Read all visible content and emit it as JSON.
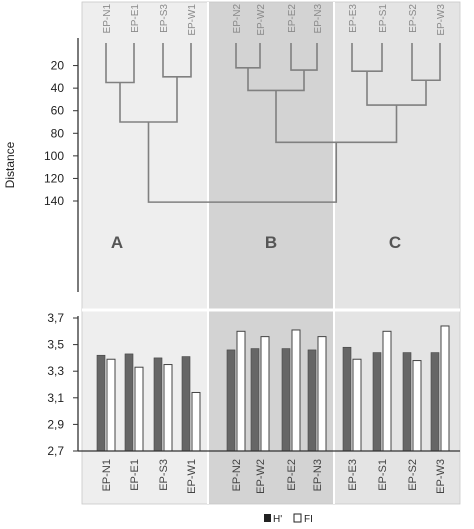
{
  "chart_data": [
    {
      "type": "dendrogram",
      "ylabel": "Distance",
      "yticks": [
        20,
        40,
        60,
        80,
        100,
        120,
        140
      ],
      "ylim": [
        0,
        150
      ],
      "leaves": [
        "EP-N1",
        "EP-E1",
        "EP-S3",
        "EP-W1",
        "EP-N2",
        "EP-W2",
        "EP-E2",
        "EP-N3",
        "EP-E3",
        "EP-S1",
        "EP-S2",
        "EP-W3"
      ],
      "merges": [
        {
          "left": "EP-N1",
          "right": "EP-E1",
          "height": 35
        },
        {
          "left": "EP-S3",
          "right": "EP-W1",
          "height": 30
        },
        {
          "left": "A1",
          "right": "A2",
          "height": 70
        },
        {
          "left": "EP-N2",
          "right": "EP-W2",
          "height": 22
        },
        {
          "left": "EP-E2",
          "right": "EP-N3",
          "height": 24
        },
        {
          "left": "B1",
          "right": "B2",
          "height": 42
        },
        {
          "left": "EP-E3",
          "right": "EP-S1",
          "height": 25
        },
        {
          "left": "EP-S2",
          "right": "EP-W3",
          "height": 33
        },
        {
          "left": "C1",
          "right": "C2",
          "height": 55
        },
        {
          "left": "B",
          "right": "C",
          "height": 88
        },
        {
          "left": "A",
          "right": "BC",
          "height": 141
        }
      ],
      "groups": [
        {
          "label": "A",
          "members": [
            "EP-N1",
            "EP-E1",
            "EP-S3",
            "EP-W1"
          ],
          "color": "#eeeeee"
        },
        {
          "label": "B",
          "members": [
            "EP-N2",
            "EP-W2",
            "EP-E2",
            "EP-N3"
          ],
          "color": "#d3d3d3"
        },
        {
          "label": "C",
          "members": [
            "EP-E3",
            "EP-S1",
            "EP-S2",
            "EP-W3"
          ],
          "color": "#e4e4e4"
        }
      ]
    },
    {
      "type": "bar",
      "categories": [
        "EP-N1",
        "EP-E1",
        "EP-S3",
        "EP-W1",
        "EP-N2",
        "EP-W2",
        "EP-E2",
        "EP-N3",
        "EP-E3",
        "EP-S1",
        "EP-S2",
        "EP-W3"
      ],
      "series": [
        {
          "name": "H'",
          "color": "#666666",
          "values": [
            3.42,
            3.43,
            3.4,
            3.41,
            3.46,
            3.47,
            3.47,
            3.46,
            3.48,
            3.44,
            3.44,
            3.44
          ]
        },
        {
          "name": "FI",
          "color": "#ffffff",
          "values": [
            3.39,
            3.33,
            3.35,
            3.14,
            3.6,
            3.56,
            3.61,
            3.56,
            3.39,
            3.6,
            3.38,
            3.64
          ]
        }
      ],
      "ylim": [
        2.7,
        3.7
      ],
      "yticks": [
        "2,7",
        "2,9",
        "3,1",
        "3,3",
        "3,5",
        "3,7"
      ],
      "legend": "bottom-right"
    }
  ]
}
